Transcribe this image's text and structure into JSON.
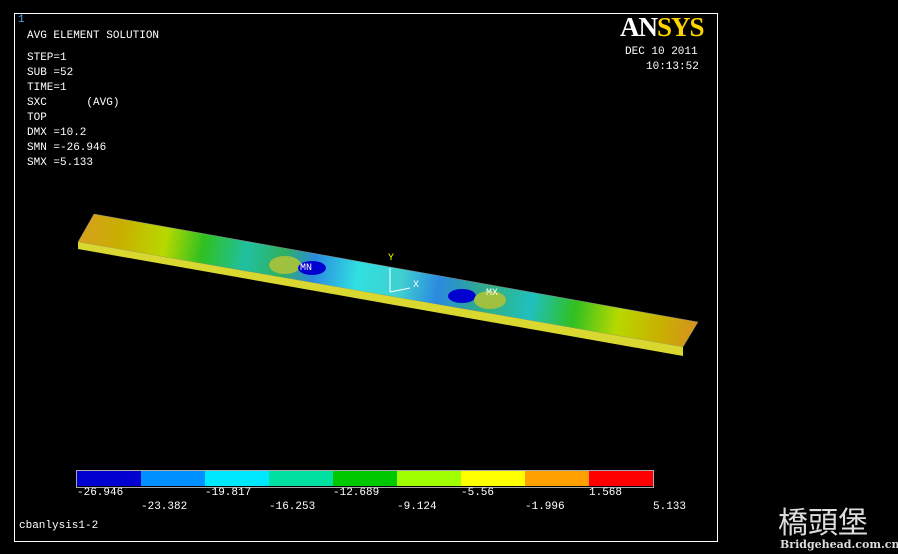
{
  "window_number": "1",
  "title": "AVG ELEMENT SOLUTION",
  "info": [
    "STEP=1",
    "SUB =52",
    "TIME=1",
    "SXC      (AVG)",
    "TOP",
    "DMX =10.2",
    "SMN =-26.946",
    "SMX =5.133"
  ],
  "date": "DEC 10 2011",
  "time": "10:13:52",
  "logo": {
    "an": "AN",
    "sys": "SYS"
  },
  "plot_labels": {
    "min": "MN",
    "max": "MX",
    "y_axis": "Y",
    "x_axis": "X"
  },
  "legend": {
    "labels": [
      "-26.946",
      "-23.382",
      "-19.817",
      "-16.253",
      "-12.689",
      "-9.124",
      "-5.56",
      "-1.996",
      "1.568",
      "5.133"
    ]
  },
  "footer": "cbanlysis1-2",
  "watermark": {
    "chinese": "橋頭堡",
    "url": "Bridgehead.com.cn"
  }
}
